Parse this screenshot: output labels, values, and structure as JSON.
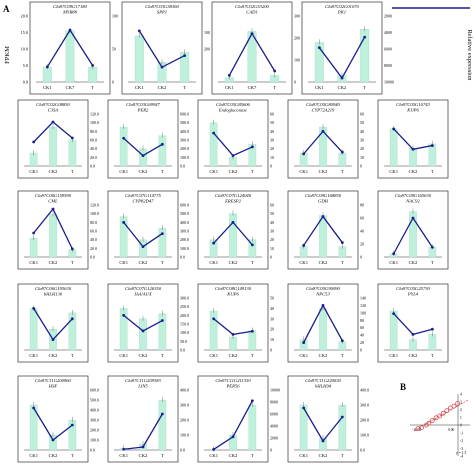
{
  "figure": {
    "panel_letters": [
      "A",
      "B"
    ],
    "fpkm_axis_label": "FPKM",
    "relative_axis_label": "Relative expression",
    "bar_color": "#bff0dc",
    "line_color": "#1a1f8c",
    "scatter_color": "#d9534f"
  },
  "chart_data": [
    {
      "type": "bar",
      "id": "Cla97C09G17180",
      "title": "Cla97C09G17180",
      "gene": "MYB88",
      "categories": [
        "CK1",
        "CK7",
        "T"
      ],
      "fpkm": [
        4.5,
        15.5,
        4.5
      ],
      "rel": [
        32,
        110,
        35
      ],
      "yticks": [
        "0.0",
        "5.0",
        "10.0",
        "15.0",
        "20.0"
      ],
      "ymax": 20,
      "rticks": [
        "0",
        "50",
        "100"
      ],
      "rmax": 140
    },
    {
      "type": "bar",
      "id": "Cla97C03G58360",
      "title": "Cla97C03G58360",
      "gene": "SPP1",
      "categories": [
        "CK1",
        "CK2",
        "T"
      ],
      "fpkm": [
        140,
        60,
        90
      ],
      "rel": [
        155,
        45,
        80
      ],
      "yticks": [],
      "ymax": 200,
      "rticks": [
        "",
        "",
        "200",
        "100",
        ""
      ],
      "rmax": 200
    },
    {
      "type": "bar",
      "id": "Cla97C02G53200",
      "title": "Cla97C02G53200",
      "gene": "CAD1",
      "categories": [
        "CK1",
        "CK7",
        "T"
      ],
      "fpkm": [
        20,
        230,
        30
      ],
      "rel": [
        30,
        220,
        50
      ],
      "yticks": [],
      "ymax": 300,
      "rticks": [
        "0",
        "100",
        "200",
        "300"
      ],
      "rmax": 300
    },
    {
      "type": "bar",
      "id": "Cla97C02G01070",
      "title": "Cla97C02G01070",
      "gene": "PK1",
      "categories": [
        "CK1",
        "CK2",
        "T"
      ],
      "fpkm": [
        60,
        10,
        80
      ],
      "rel": [
        5200,
        600,
        6800
      ],
      "yticks": [],
      "ymax": 100,
      "rticks": [
        "10000",
        "8000",
        "6000",
        "4000",
        "2000"
      ],
      "rmax": 10000
    },
    {
      "type": "bar",
      "id": "Cla97C02G08850",
      "title": "Cla97C02G08850",
      "gene": "C3SA",
      "categories": [
        "CK1",
        "CK2",
        "T"
      ],
      "fpkm": [
        10,
        30,
        20
      ],
      "rel": [
        60,
        110,
        70
      ],
      "yticks": [],
      "ymax": 40,
      "rticks": [
        "0.0",
        "20.0",
        "40.0",
        "60.0",
        "80.0",
        "100.0",
        "120.0"
      ],
      "rmax": 130
    },
    {
      "type": "bar",
      "id": "Cla97C03G69947",
      "title": "Cla97C03G69947",
      "gene": "PER2",
      "categories": [
        "CK1",
        "CK2",
        "T"
      ],
      "fpkm": [
        45,
        20,
        35
      ],
      "rel": [
        320,
        120,
        250
      ],
      "yticks": [],
      "ymax": 60,
      "rticks": [
        "0.0",
        "100.0",
        "200.0",
        "300.0",
        "400.0",
        "500.0",
        "600.0"
      ],
      "rmax": 600
    },
    {
      "type": "bar",
      "id": "Cla97C05G85606",
      "title": "Cla97C05G85606",
      "gene": "Endoglucanase",
      "categories": [
        "CK1",
        "CK2",
        "T"
      ],
      "fpkm": [
        5,
        1,
        2.5
      ],
      "rel": [
        38,
        12,
        22
      ],
      "yticks": [],
      "ymax": 6,
      "rticks": [
        "0",
        "10",
        "20",
        "30",
        "40",
        "50",
        "60"
      ],
      "rmax": 60
    },
    {
      "type": "bar",
      "id": "Cla97C05G80940",
      "title": "Cla97C05G80940",
      "gene": "CYP72A219",
      "categories": [
        "CK1",
        "CK2",
        "T"
      ],
      "fpkm": [
        2,
        6,
        2
      ],
      "rel": [
        14,
        40,
        16
      ],
      "yticks": [],
      "ymax": 8,
      "rticks": [
        "0",
        "10",
        "20",
        "30",
        "40",
        "50",
        "60"
      ],
      "rmax": 60
    },
    {
      "type": "bar",
      "id": "Cla97C05G10743",
      "title": "Cla97C05G10743",
      "gene": "KUP6",
      "categories": [
        "CK1",
        "CK2",
        "T"
      ],
      "fpkm": [
        25,
        12,
        15
      ],
      "rel": [
        100,
        45,
        55
      ],
      "yticks": [],
      "ymax": 35,
      "rticks": [
        "",
        "",
        "",
        ""
      ],
      "rmax": 140
    },
    {
      "type": "bar",
      "id": "Cla97C06G159590",
      "title": "Cla97C06G159590",
      "gene": "CML",
      "categories": [
        "CK1",
        "CK2",
        "T"
      ],
      "fpkm": [
        8,
        18,
        3
      ],
      "rel": [
        60,
        120,
        20
      ],
      "yticks": [],
      "ymax": 22,
      "rticks": [
        "0.0",
        "20.0",
        "40.0",
        "60.0",
        "80.0",
        "100.0",
        "120.0"
      ],
      "rmax": 130
    },
    {
      "type": "bar",
      "id": "Cla97C07G114775",
      "title": "Cla97C07G114775",
      "gene": "CYP82D47",
      "categories": [
        "CK1",
        "CK2",
        "T"
      ],
      "fpkm": [
        35,
        15,
        25
      ],
      "rel": [
        400,
        120,
        270
      ],
      "yticks": [],
      "ymax": 45,
      "rticks": [
        "0.0",
        "100.0",
        "200.0",
        "300.0",
        "400.0",
        "500.0",
        "600.0"
      ],
      "rmax": 600
    },
    {
      "type": "bar",
      "id": "Cla97C07G124040",
      "title": "Cla97C07G124040",
      "gene": "ERESP2",
      "categories": [
        "CK1",
        "CK2",
        "T"
      ],
      "fpkm": [
        2,
        5,
        2
      ],
      "rel": [
        16,
        40,
        14
      ],
      "yticks": [],
      "ymax": 6,
      "rticks": [
        "0",
        "10",
        "20",
        "30",
        "40",
        "50",
        "60"
      ],
      "rmax": 60
    },
    {
      "type": "bar",
      "id": "Cla97C09G168850",
      "title": "Cla97C09G168850",
      "gene": "GDH",
      "categories": [
        "CK1",
        "CK2",
        "T"
      ],
      "fpkm": [
        3,
        12,
        3
      ],
      "rel": [
        20,
        70,
        25
      ],
      "yticks": [],
      "ymax": 15,
      "rticks": [
        "0",
        "20",
        "40",
        "60",
        "80"
      ],
      "rmax": 90
    },
    {
      "type": "bar",
      "id": "Cla97C09G165630",
      "title": "Cla97C09G165630",
      "gene": "NAC92",
      "categories": [
        "CK1",
        "CK2",
        "T"
      ],
      "fpkm": [
        1,
        14,
        3
      ],
      "rel": [
        5,
        60,
        15
      ],
      "yticks": [],
      "ymax": 16,
      "rticks": [
        "",
        "",
        "",
        "",
        ""
      ],
      "rmax": 80
    },
    {
      "type": "bar",
      "id": "Cla97C06G195630",
      "title": "Cla97C06G195630",
      "gene": "bHLH130",
      "categories": [
        "CK1",
        "CK2",
        "T"
      ],
      "fpkm": [
        28,
        14,
        25
      ],
      "rel": [
        80,
        20,
        60
      ],
      "yticks": [],
      "ymax": 35,
      "rticks": [],
      "rmax": 100
    },
    {
      "type": "bar",
      "id": "Cla97C07G126350",
      "title": "Cla97C07G126350",
      "gene": "IAA/AUX",
      "categories": [
        "CK1",
        "CK2",
        "T"
      ],
      "fpkm": [
        40,
        30,
        35
      ],
      "rel": [
        200,
        110,
        170
      ],
      "yticks": [],
      "ymax": 50,
      "rticks": [
        "0.0",
        "50.0",
        "100.0",
        "150.0",
        "200.0",
        "250.0",
        "300.0"
      ],
      "rmax": 300
    },
    {
      "type": "bar",
      "id": "Cla97C08G149130",
      "title": "Cla97C08G149130",
      "gene": "KUP6",
      "categories": [
        "CK1",
        "CK2",
        "T"
      ],
      "fpkm": [
        3,
        1,
        1.5
      ],
      "rel": [
        30,
        15,
        18
      ],
      "yticks": [],
      "ymax": 4,
      "rticks": [
        "0",
        "10",
        "20",
        "30",
        "40",
        "50"
      ],
      "rmax": 50
    },
    {
      "type": "bar",
      "id": "Cla97C05G90090",
      "title": "Cla97C05G90090",
      "gene": "NPC53",
      "categories": [
        "CK1",
        "CK2",
        "T"
      ],
      "fpkm": [
        5,
        20,
        4
      ],
      "rel": [
        20,
        120,
        25
      ],
      "yticks": [],
      "ymax": 25,
      "rticks": [
        "0",
        "20",
        "40",
        "60",
        "80",
        "100",
        "120",
        "140"
      ],
      "rmax": 140
    },
    {
      "type": "bar",
      "id": "Cla97C05G25730",
      "title": "Cla97C05G25730",
      "gene": "PYL4",
      "categories": [
        "CK1",
        "CK2",
        "T"
      ],
      "fpkm": [
        30,
        8,
        12
      ],
      "rel": [
        3.5,
        1.5,
        2
      ],
      "yticks": [],
      "ymax": 40,
      "rticks": [
        "",
        "",
        "",
        "",
        ""
      ],
      "rmax": 5
    },
    {
      "type": "bar",
      "id": "Cla97C11G200960",
      "title": "Cla97C11G200960",
      "gene": "HSF",
      "categories": [
        "CK1",
        "CK2",
        "T"
      ],
      "fpkm": [
        30,
        10,
        20
      ],
      "rel": [
        420,
        100,
        250
      ],
      "yticks": [],
      "ymax": 40,
      "rticks": [
        "0.0",
        "100.0",
        "200.0",
        "300.0",
        "400.0",
        "500.0",
        "600.0"
      ],
      "rmax": 600
    },
    {
      "type": "bar",
      "id": "Cla97C11G209383",
      "title": "Cla97C11G209383",
      "gene": "LIN5",
      "categories": [
        "CK1",
        "CK2",
        "T"
      ],
      "fpkm": [
        1,
        3,
        25
      ],
      "rel": [
        5,
        20,
        240
      ],
      "yticks": [],
      "ymax": 30,
      "rticks": [
        "0.0",
        "100.0",
        "200.0",
        "300.0",
        "400.0"
      ],
      "rmax": 400
    },
    {
      "type": "bar",
      "id": "Cla97C11G211330",
      "title": "Cla97C11G211330",
      "gene": "PER56",
      "categories": [
        "CK1",
        "CK2",
        "T"
      ],
      "fpkm": [
        1,
        20,
        60
      ],
      "rel": [
        100,
        2200,
        8200
      ],
      "yticks": [],
      "ymax": 80,
      "rticks": [
        "0",
        "2000",
        "4000",
        "6000",
        "8000",
        "10000"
      ],
      "rmax": 10000
    },
    {
      "type": "bar",
      "id": "Cla97C11G220030",
      "title": "Cla97C11G220030",
      "gene": "bHLH94",
      "categories": [
        "CK1",
        "CK2",
        "T"
      ],
      "fpkm": [
        30,
        8,
        30
      ],
      "rel": [
        280,
        60,
        220
      ],
      "yticks": [],
      "ymax": 40,
      "rticks": [
        "0.0",
        "100.0",
        "200.0",
        "300.0",
        "400.0"
      ],
      "rmax": 400
    },
    {
      "type": "scatter",
      "id": "B",
      "x_ticks": [
        "-10.00",
        "0.00"
      ],
      "y_ticks": [
        "-4",
        "-3",
        "-2",
        "-1",
        "0",
        "1",
        "2",
        "3",
        "4"
      ],
      "equation": "y = 1.3"
    }
  ]
}
